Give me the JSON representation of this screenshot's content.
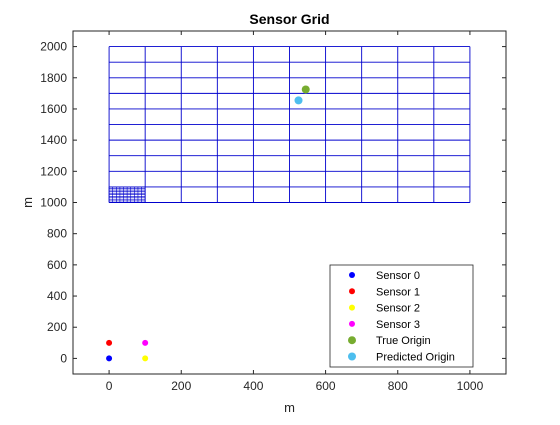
{
  "chart_data": {
    "type": "scatter",
    "title": "Sensor Grid",
    "xlabel": "m",
    "ylabel": "m",
    "xlim": [
      -100,
      1100
    ],
    "ylim": [
      -100,
      2100
    ],
    "xticks": [
      0,
      200,
      400,
      600,
      800,
      1000
    ],
    "yticks": [
      0,
      200,
      400,
      600,
      800,
      1000,
      1200,
      1400,
      1600,
      1800,
      2000
    ],
    "grid": false,
    "legend_position": "bottom-right",
    "search_grid": {
      "color": "#0000cd",
      "coarse": {
        "x_min": 0,
        "x_max": 1000,
        "y_min": 1000,
        "y_max": 2000,
        "x_step": 100,
        "y_step": 100
      },
      "fine": {
        "x_min": 0,
        "x_max": 100,
        "y_min": 1000,
        "y_max": 1100,
        "x_step": 10,
        "y_step": 10
      }
    },
    "series": [
      {
        "name": "Sensor 0",
        "color": "#0000ff",
        "points": [
          [
            0,
            0
          ]
        ]
      },
      {
        "name": "Sensor 1",
        "color": "#ff0000",
        "points": [
          [
            0,
            100
          ]
        ]
      },
      {
        "name": "Sensor 2",
        "color": "#ffff00",
        "points": [
          [
            100,
            0
          ]
        ]
      },
      {
        "name": "Sensor 3",
        "color": "#ff00ff",
        "points": [
          [
            100,
            100
          ]
        ]
      },
      {
        "name": "True Origin",
        "color": "#77ac30",
        "points": [
          [
            545,
            1725
          ]
        ]
      },
      {
        "name": "Predicted Origin",
        "color": "#4dbeee",
        "points": [
          [
            525,
            1655
          ]
        ]
      }
    ]
  }
}
